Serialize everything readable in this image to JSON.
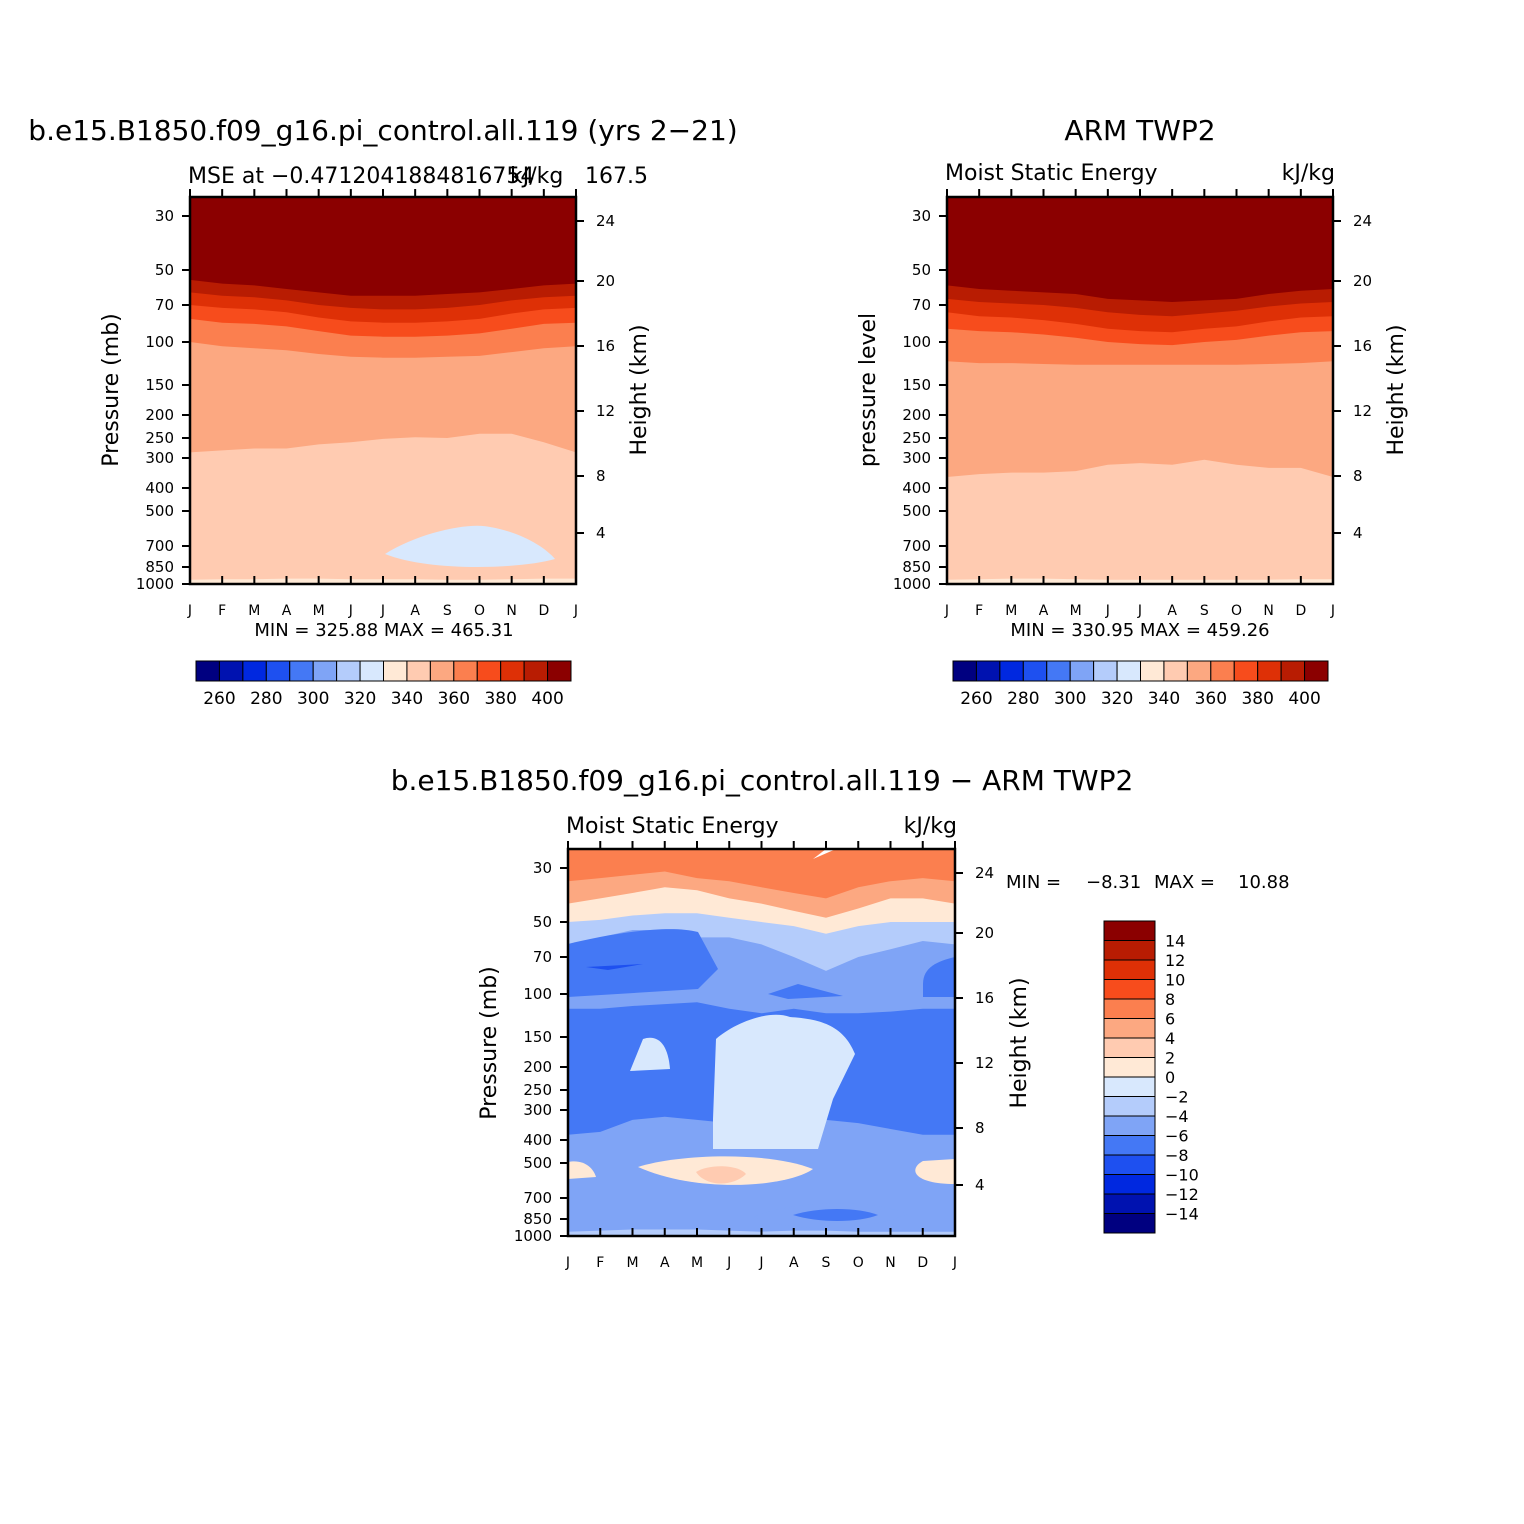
{
  "colors": {
    "scale": [
      "#000080",
      "#0012b0",
      "#0028e0",
      "#1e50f0",
      "#4478f5",
      "#7fa4f6",
      "#b4ccfb",
      "#d8e8fd",
      "#ffe9d6",
      "#ffcbb1",
      "#fca881",
      "#fb7f4f",
      "#f74c1c",
      "#de3006",
      "#b81c02",
      "#8b0000"
    ]
  },
  "chart_data": [
    {
      "type": "contour",
      "title": "b.e15.B1850.f09_g16.pi_control.all.119 (yrs 2−21)",
      "left_string": "MSE at −0.4712041884816754",
      "right_string": "kJ/kg",
      "center_string": "167.5",
      "ylabel": "Pressure (mb)",
      "ylabel_right": "Height (km)",
      "x_ticks": [
        "J",
        "F",
        "M",
        "A",
        "M",
        "J",
        "J",
        "A",
        "S",
        "O",
        "N",
        "D",
        "J"
      ],
      "y_ticks": [
        "30",
        "50",
        "70",
        "100",
        "150",
        "200",
        "250",
        "300",
        "400",
        "500",
        "700",
        "850",
        "1000"
      ],
      "y_right_ticks": [
        "24",
        "20",
        "16",
        "12",
        "8",
        "4"
      ],
      "min_max": "MIN = 325.88  MAX = 465.31",
      "colorbar_labels": [
        "260",
        "280",
        "300",
        "320",
        "340",
        "360",
        "380",
        "400"
      ],
      "levels": [
        250,
        260,
        270,
        280,
        290,
        300,
        310,
        320,
        330,
        340,
        350,
        360,
        370,
        380,
        390,
        400
      ],
      "contour_bounds_mb": [
        {
          "level": 400,
          "p": [
            55,
            57,
            58,
            60,
            62,
            64,
            64,
            64,
            63,
            62,
            60,
            58,
            57
          ]
        },
        {
          "level": 390,
          "p": [
            62,
            64,
            65,
            67,
            70,
            72,
            73,
            73,
            72,
            70,
            67,
            65,
            64
          ]
        },
        {
          "level": 380,
          "p": [
            70,
            72,
            73,
            75,
            79,
            82,
            83,
            83,
            82,
            80,
            76,
            73,
            72
          ]
        },
        {
          "level": 370,
          "p": [
            80,
            83,
            84,
            86,
            90,
            94,
            95,
            95,
            94,
            92,
            88,
            84,
            83
          ]
        },
        {
          "level": 360,
          "p": [
            100,
            104,
            106,
            108,
            112,
            115,
            116,
            116,
            115,
            114,
            110,
            106,
            104
          ]
        },
        {
          "level": 350,
          "p": [
            285,
            280,
            275,
            275,
            265,
            260,
            252,
            248,
            250,
            240,
            240,
            260,
            285
          ]
        },
        {
          "level": 340,
          "p": [
            960,
            955,
            955,
            950,
            950,
            955,
            955,
            955,
            960,
            960,
            955,
            950,
            950
          ]
        }
      ]
    },
    {
      "type": "contour",
      "title": "ARM TWP2",
      "left_string": "Moist Static Energy",
      "right_string": "kJ/kg",
      "ylabel": "pressure level",
      "ylabel_right": "Height (km)",
      "x_ticks": [
        "J",
        "F",
        "M",
        "A",
        "M",
        "J",
        "J",
        "A",
        "S",
        "O",
        "N",
        "D",
        "J"
      ],
      "y_ticks": [
        "30",
        "50",
        "70",
        "100",
        "150",
        "200",
        "250",
        "300",
        "400",
        "500",
        "700",
        "850",
        "1000"
      ],
      "y_right_ticks": [
        "24",
        "20",
        "16",
        "12",
        "8",
        "4"
      ],
      "min_max": "MIN = 330.95  MAX = 459.26",
      "colorbar_labels": [
        "260",
        "280",
        "300",
        "320",
        "340",
        "360",
        "380",
        "400"
      ],
      "levels": [
        250,
        260,
        270,
        280,
        290,
        300,
        310,
        320,
        330,
        340,
        350,
        360,
        370,
        380,
        390,
        400
      ],
      "contour_bounds_mb": [
        {
          "level": 400,
          "p": [
            58,
            60,
            61,
            62,
            63,
            66,
            67,
            68,
            67,
            66,
            63,
            61,
            60
          ]
        },
        {
          "level": 390,
          "p": [
            66,
            68,
            69,
            70,
            72,
            75,
            77,
            78,
            76,
            74,
            71,
            69,
            68
          ]
        },
        {
          "level": 380,
          "p": [
            75,
            78,
            79,
            81,
            84,
            88,
            90,
            91,
            88,
            86,
            82,
            79,
            78
          ]
        },
        {
          "level": 370,
          "p": [
            88,
            90,
            91,
            93,
            96,
            100,
            102,
            103,
            100,
            98,
            94,
            91,
            90
          ]
        },
        {
          "level": 360,
          "p": [
            120,
            122,
            122,
            123,
            124,
            124,
            124,
            124,
            124,
            124,
            123,
            122,
            120
          ]
        },
        {
          "level": 350,
          "p": [
            360,
            350,
            345,
            345,
            340,
            320,
            315,
            320,
            305,
            320,
            330,
            330,
            360
          ]
        },
        {
          "level": 340,
          "p": [
            960,
            955,
            950,
            950,
            955,
            960,
            960,
            960,
            960,
            960,
            960,
            955,
            955
          ]
        }
      ]
    },
    {
      "type": "contour",
      "title": "b.e15.B1850.f09_g16.pi_control.all.119 − ARM TWP2",
      "left_string": "Moist Static Energy",
      "right_string": "kJ/kg",
      "ylabel": "Pressure (mb)",
      "ylabel_right": "Height (km)",
      "x_ticks": [
        "J",
        "F",
        "M",
        "A",
        "M",
        "J",
        "J",
        "A",
        "S",
        "O",
        "N",
        "D",
        "J"
      ],
      "y_ticks": [
        "30",
        "50",
        "70",
        "100",
        "150",
        "200",
        "250",
        "300",
        "400",
        "500",
        "700",
        "850",
        "1000"
      ],
      "y_right_ticks": [
        "24",
        "20",
        "16",
        "12",
        "8",
        "4"
      ],
      "min_max_label": "MIN =",
      "min_value": "−8.31",
      "max_label": "MAX =",
      "max_value": "10.88",
      "colorbar_labels": [
        "14",
        "12",
        "10",
        "8",
        "6",
        "4",
        "2",
        "0",
        "−2",
        "−4",
        "−6",
        "−8",
        "−10",
        "−12",
        "−14"
      ],
      "levels": [
        -14,
        -12,
        -10,
        -8,
        -6,
        -4,
        -2,
        0,
        2,
        4,
        6,
        8,
        10,
        12,
        14
      ],
      "band_bounds_mb": [
        {
          "value": 6,
          "p": [
            34,
            33,
            32,
            31,
            33,
            34,
            36,
            38,
            40,
            36,
            34,
            33,
            34
          ]
        },
        {
          "value": 2,
          "p": [
            42,
            40,
            38,
            36,
            37,
            40,
            42,
            45,
            48,
            44,
            40,
            40,
            42
          ]
        },
        {
          "value": -2,
          "p": [
            50,
            49,
            47,
            46,
            46,
            48,
            50,
            52,
            56,
            52,
            50,
            50,
            50
          ]
        },
        {
          "value": -4,
          "p": [
            62,
            58,
            54,
            54,
            58,
            58,
            62,
            70,
            80,
            70,
            65,
            60,
            62
          ]
        },
        {
          "value": -6,
          "p": [
            115,
            115,
            112,
            110,
            108,
            115,
            120,
            115,
            120,
            120,
            118,
            115,
            115
          ]
        },
        {
          "value": -4,
          "p": [
            380,
            370,
            330,
            320,
            330,
            340,
            350,
            340,
            330,
            340,
            360,
            380,
            380
          ]
        },
        {
          "value": -2,
          "p": [
            960,
            950,
            940,
            940,
            940,
            950,
            960,
            950,
            950,
            960,
            960,
            960,
            960
          ]
        }
      ]
    }
  ]
}
